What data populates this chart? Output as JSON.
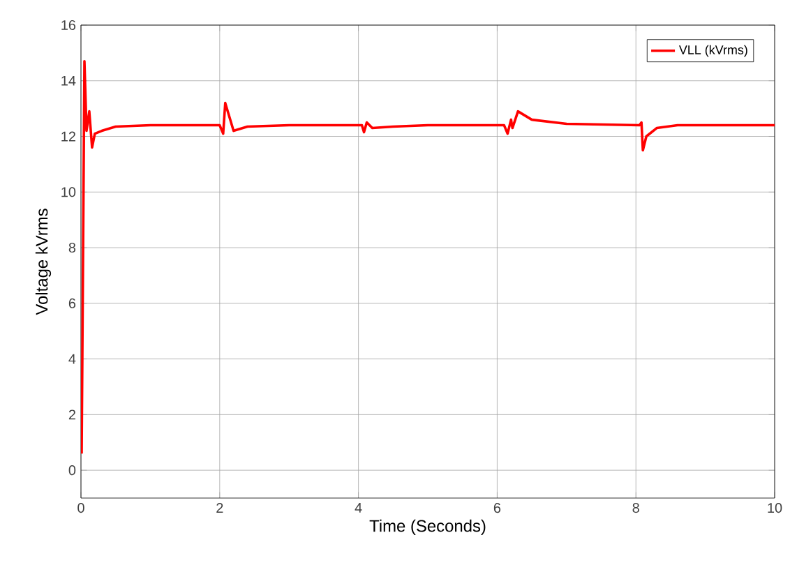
{
  "chart_data": {
    "type": "line",
    "xlabel": "Time (Seconds)",
    "ylabel": "Voltage kVrms",
    "x": [
      0.01,
      0.05,
      0.08,
      0.12,
      0.16,
      0.2,
      0.3,
      0.5,
      1.0,
      2.0,
      2.05,
      2.08,
      2.2,
      2.4,
      3.0,
      4.05,
      4.08,
      4.12,
      4.2,
      4.5,
      5.0,
      6.1,
      6.15,
      6.2,
      6.22,
      6.3,
      6.5,
      7.0,
      8.05,
      8.08,
      8.1,
      8.15,
      8.3,
      8.6,
      10.0
    ],
    "series": [
      {
        "name": "VLL (kVrms)",
        "color": "#ff0000",
        "values": [
          0.6,
          14.7,
          12.2,
          12.9,
          11.6,
          12.1,
          12.2,
          12.35,
          12.4,
          12.4,
          12.1,
          13.2,
          12.2,
          12.35,
          12.4,
          12.4,
          12.15,
          12.5,
          12.3,
          12.35,
          12.4,
          12.4,
          12.1,
          12.6,
          12.3,
          12.9,
          12.6,
          12.45,
          12.4,
          12.5,
          11.5,
          12.0,
          12.3,
          12.4,
          12.4
        ]
      }
    ],
    "xlim": [
      0,
      10
    ],
    "ylim": [
      -1,
      16
    ],
    "xticks": [
      0,
      2,
      4,
      6,
      8,
      10
    ],
    "yticks": [
      0,
      2,
      4,
      6,
      8,
      10,
      12,
      14,
      16
    ],
    "grid": true,
    "legend": "top right",
    "line_style": "solid",
    "marker": "none"
  }
}
